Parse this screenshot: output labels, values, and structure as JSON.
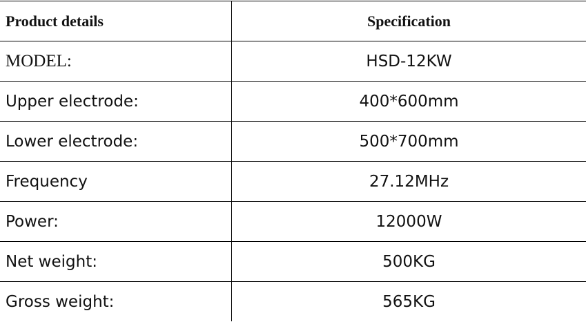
{
  "table": {
    "header": [
      "Product details",
      "Specification"
    ],
    "rows": [
      [
        "MODEL:",
        "HSD-12KW"
      ],
      [
        "Upper electrode:",
        "400*600mm"
      ],
      [
        "Lower electrode:",
        "500*700mm"
      ],
      [
        "Frequency",
        "27.12MHz"
      ],
      [
        "Power:",
        "12000W"
      ],
      [
        "Net weight:",
        "500KG"
      ],
      [
        "Gross weight:",
        "565KG"
      ]
    ]
  }
}
